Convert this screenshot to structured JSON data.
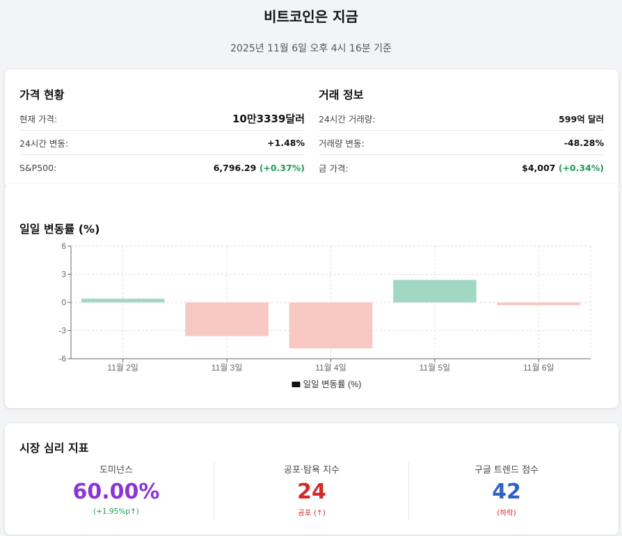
{
  "header": {
    "title": "비트코인은 지금",
    "subtitle": "2025년 11월 6일 오후 4시 16분 기준"
  },
  "price": {
    "title": "가격 현황",
    "rows": [
      {
        "label": "현재 가격:",
        "value": "10만3339달러"
      },
      {
        "label": "24시간 변동:",
        "value": "+1.48%"
      },
      {
        "label": "S&P500:",
        "value": "6,796.29",
        "change": "(+0.37%)"
      }
    ]
  },
  "trade": {
    "title": "거래 정보",
    "rows": [
      {
        "label": "24시간 거래량:",
        "value": "599억 달러"
      },
      {
        "label": "거래량 변동:",
        "value": "-48.28%"
      },
      {
        "label": "금 가격:",
        "value": "$4,007",
        "change": "(+0.34%)"
      }
    ]
  },
  "colors": {
    "positive_bar": "#a0d8c4",
    "negative_bar": "#f8c8c2",
    "positive_text": "#1f9d55",
    "negative_text": "#d42a2a",
    "dominance": "#8a35d6",
    "fear_greed": "#d42a2a",
    "trends": "#2f62c9"
  },
  "chart_data": {
    "type": "bar",
    "title": "일일 변동률 (%)",
    "categories": [
      "11월 2일",
      "11월 3일",
      "11월 4일",
      "11월 5일",
      "11월 6일"
    ],
    "series": [
      {
        "name": "일일 변동률 (%)",
        "values": [
          0.4,
          -3.6,
          -4.9,
          2.4,
          -0.3
        ]
      }
    ],
    "ylim": [
      -6,
      6
    ],
    "yticks": [
      6,
      3,
      0,
      -3,
      -6
    ],
    "grid": true,
    "legend": "bottom"
  },
  "sentiment": {
    "title": "시장 심리 지표",
    "items": [
      {
        "label": "도미넌스",
        "value": "60.00%",
        "sub": "(+1.95%p↑)",
        "color_key": "dominance"
      },
      {
        "label": "공포·탐욕 지수",
        "value": "24",
        "sub": "공포 (↑)",
        "color_key": "fear_greed"
      },
      {
        "label": "구글 트렌드 점수",
        "value": "42",
        "sub": "(하락)",
        "color_key": "trends"
      }
    ]
  }
}
